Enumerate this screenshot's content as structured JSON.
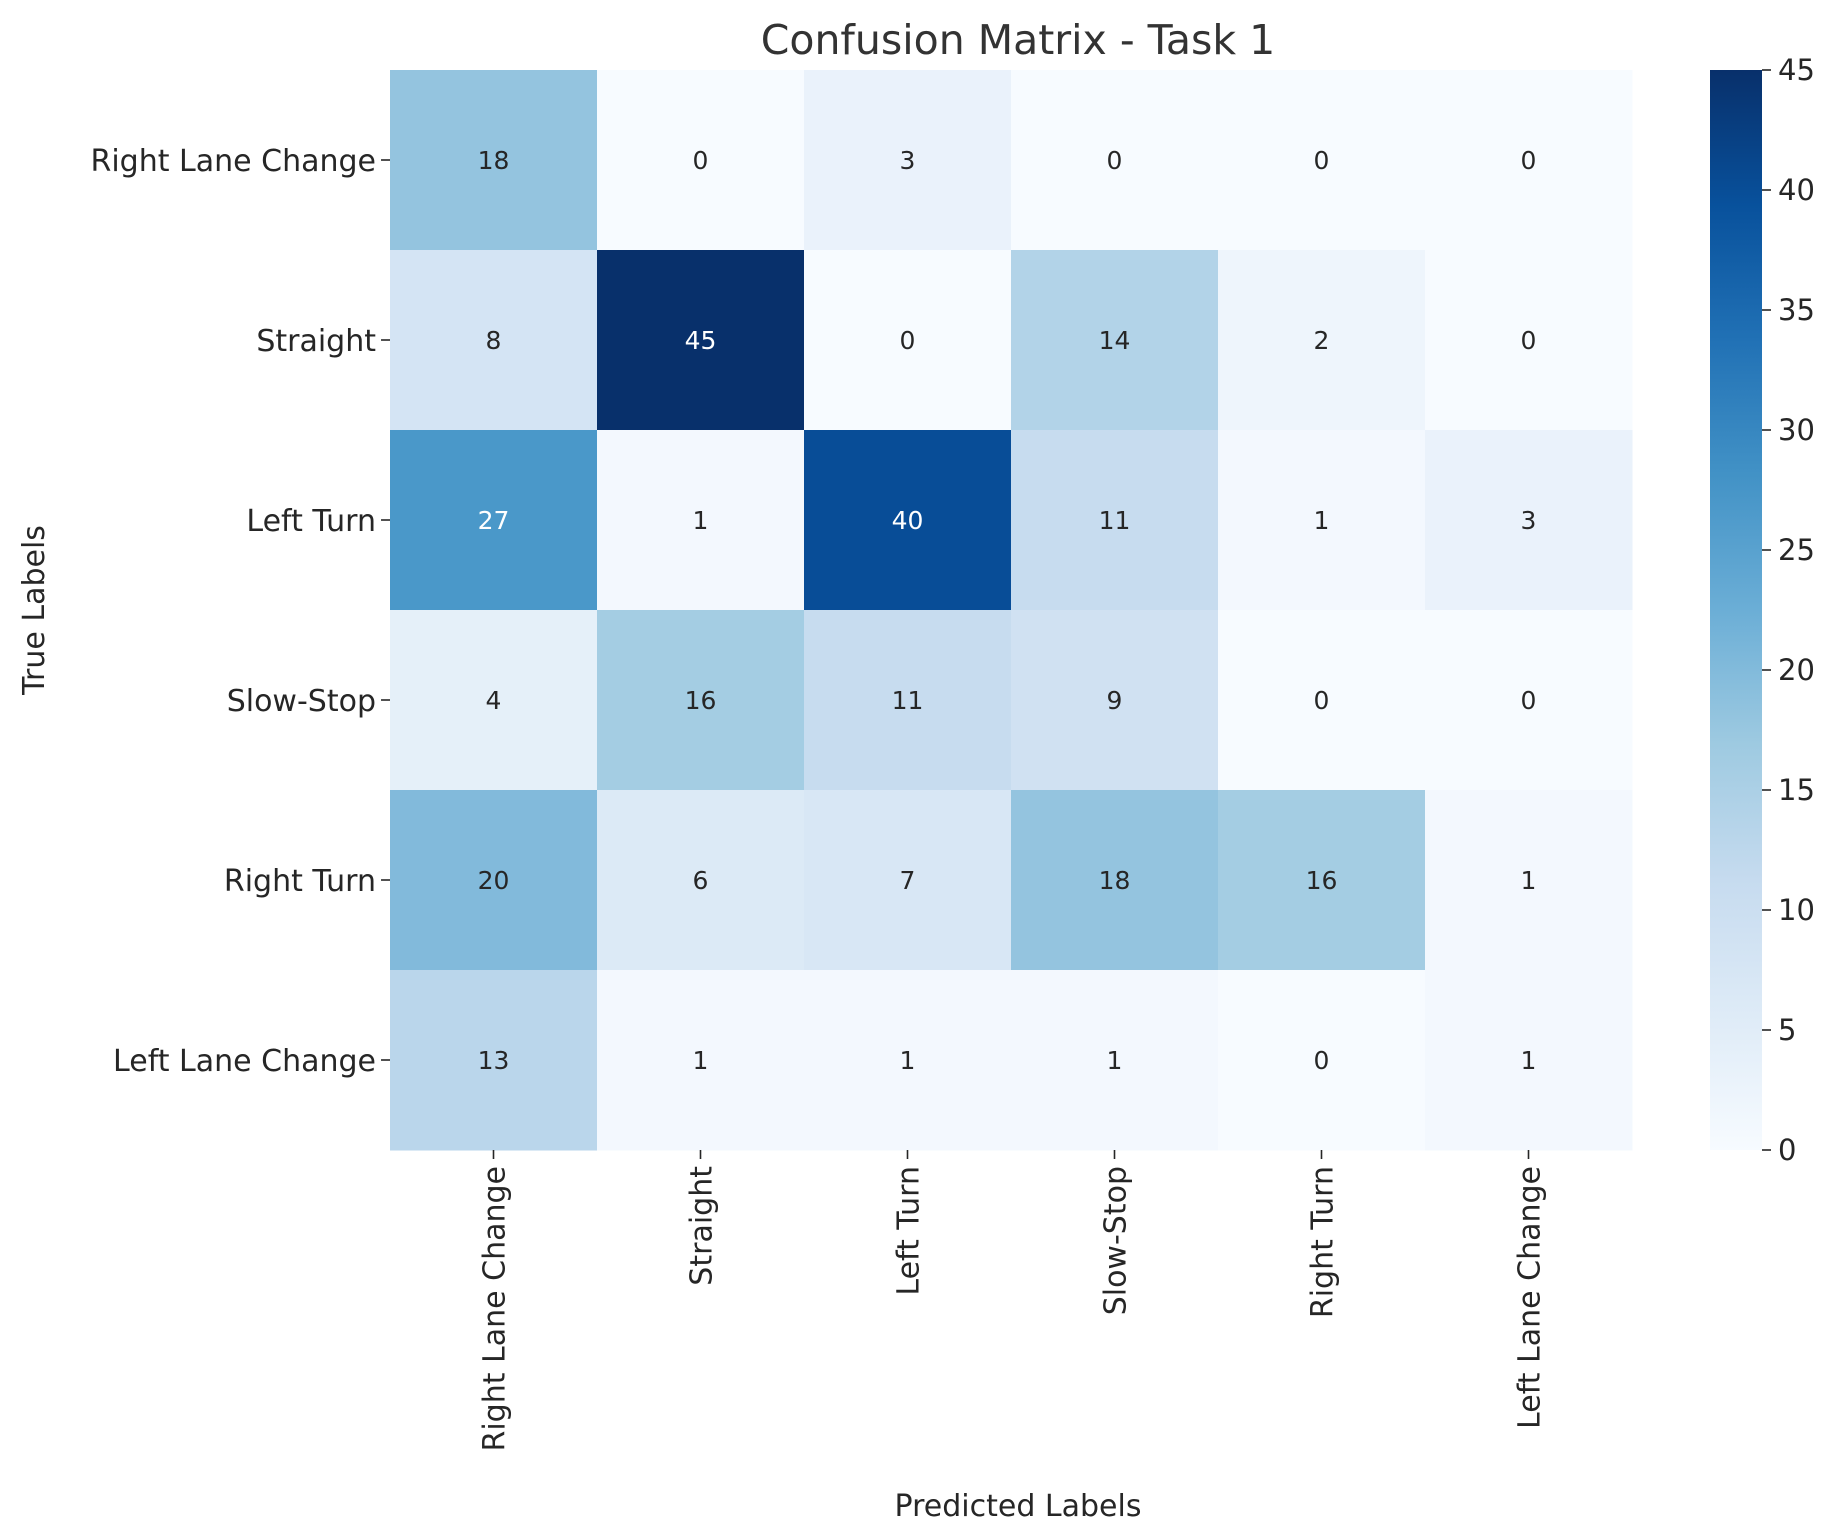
{
  "chart_data": {
    "type": "heatmap",
    "title": "Confusion Matrix - Task 1",
    "xlabel": "Predicted Labels",
    "ylabel": "True Labels",
    "x_categories": [
      "Right Lane Change",
      "Straight",
      "Left Turn",
      "Slow-Stop",
      "Right Turn",
      "Left Lane Change"
    ],
    "y_categories": [
      "Right Lane Change",
      "Straight",
      "Left Turn",
      "Slow-Stop",
      "Right Turn",
      "Left Lane Change"
    ],
    "values": [
      [
        18,
        0,
        3,
        0,
        0,
        0
      ],
      [
        8,
        45,
        0,
        14,
        2,
        0
      ],
      [
        27,
        1,
        40,
        11,
        1,
        3
      ],
      [
        4,
        16,
        11,
        9,
        0,
        0
      ],
      [
        20,
        6,
        7,
        18,
        16,
        1
      ],
      [
        13,
        1,
        1,
        1,
        0,
        1
      ]
    ],
    "colormap": "Blues",
    "colorbar": {
      "range": [
        0,
        45
      ],
      "ticks": [
        0,
        5,
        10,
        15,
        20,
        25,
        30,
        35,
        40,
        45
      ]
    },
    "colors": {
      "low": "#f7fbff",
      "high": "#08306b",
      "text_dark": "#262626",
      "text_light": "#ffffff"
    },
    "annotations": true,
    "grid": false
  }
}
